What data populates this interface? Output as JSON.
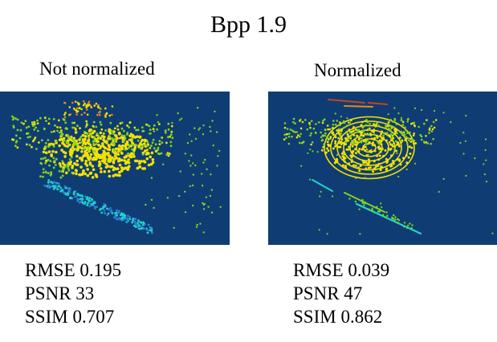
{
  "title": "Bpp 1.9",
  "panels": [
    {
      "label": "Not normalized",
      "metrics": {
        "rmse": "RMSE 0.195",
        "psnr": "PSNR 33",
        "ssim": "SSIM 0.707"
      }
    },
    {
      "label": "Normalized",
      "metrics": {
        "rmse": "RMSE 0.039",
        "psnr": "PSNR 47",
        "ssim": "SSIM 0.862"
      }
    }
  ],
  "colors": {
    "background": "#0f3d73",
    "yellow": "#f2e200",
    "green": "#7fd321",
    "cyan": "#1fd6c8",
    "orange": "#e38a1a",
    "red": "#c9431c"
  }
}
